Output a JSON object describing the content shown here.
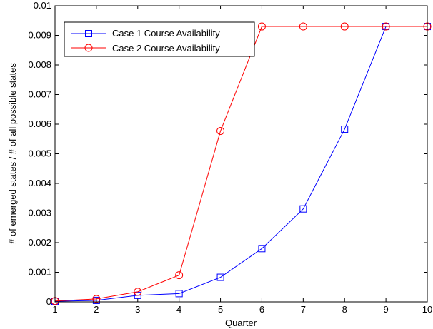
{
  "chart_data": {
    "type": "line",
    "title": "",
    "xlabel": "Quarter",
    "ylabel": "# of emerged states / # of all possible states",
    "xlim": [
      1,
      10
    ],
    "ylim": [
      0,
      0.01
    ],
    "x_ticks": [
      1,
      2,
      3,
      4,
      5,
      6,
      7,
      8,
      9,
      10
    ],
    "x_tick_labels": [
      "1",
      "2",
      "3",
      "4",
      "5",
      "6",
      "7",
      "8",
      "9",
      "10"
    ],
    "y_ticks": [
      0,
      0.001,
      0.002,
      0.003,
      0.004,
      0.005,
      0.006,
      0.007,
      0.008,
      0.009,
      0.01
    ],
    "y_tick_labels": [
      "0",
      "0.001",
      "0.002",
      "0.003",
      "0.004",
      "0.005",
      "0.006",
      "0.007",
      "0.008",
      "0.009",
      "0.01"
    ],
    "grid": false,
    "legend_position": "top-left",
    "series": [
      {
        "name": "Case 1 Course Availability",
        "color": "#0000ff",
        "marker": "square",
        "x": [
          1,
          2,
          3,
          4,
          5,
          6,
          7,
          8,
          9,
          10
        ],
        "values": [
          2e-05,
          5e-05,
          0.00022,
          0.00028,
          0.00083,
          0.0018,
          0.00314,
          0.00583,
          0.0093,
          0.0093
        ]
      },
      {
        "name": "Case 2 Course Availability",
        "color": "#ff0000",
        "marker": "circle",
        "x": [
          1,
          2,
          3,
          4,
          5,
          6,
          7,
          8,
          9,
          10
        ],
        "values": [
          3e-05,
          0.0001,
          0.00034,
          0.0009,
          0.00577,
          0.0093,
          0.0093,
          0.0093,
          0.0093,
          0.0093
        ]
      }
    ]
  }
}
